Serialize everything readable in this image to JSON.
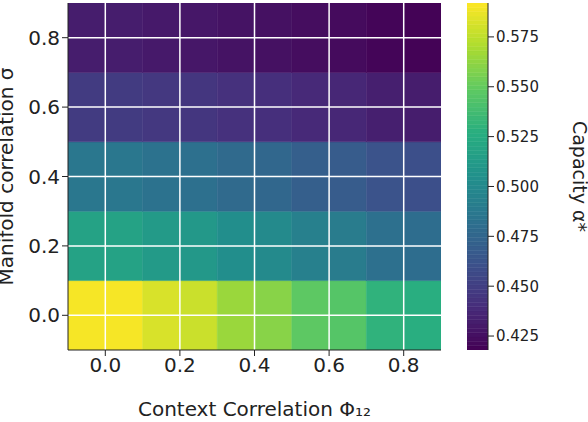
{
  "chart_data": {
    "type": "heatmap",
    "xlabel": "Context Correlation Φ₁₂",
    "ylabel": "Manifold correlation σ",
    "x": [
      -0.05,
      0.05,
      0.15,
      0.25,
      0.35,
      0.45,
      0.55,
      0.65,
      0.75,
      0.85
    ],
    "y": [
      0.0,
      0.2,
      0.4,
      0.6,
      0.8
    ],
    "values": [
      [
        0.59,
        0.59,
        0.582,
        0.578,
        0.565,
        0.56,
        0.548,
        0.545,
        0.53,
        0.527
      ],
      [
        0.518,
        0.518,
        0.512,
        0.51,
        0.503,
        0.5,
        0.493,
        0.49,
        0.482,
        0.48
      ],
      [
        0.487,
        0.487,
        0.483,
        0.482,
        0.478,
        0.476,
        0.47,
        0.468,
        0.462,
        0.46
      ],
      [
        0.448,
        0.448,
        0.446,
        0.445,
        0.442,
        0.441,
        0.438,
        0.437,
        0.433,
        0.432
      ],
      [
        0.432,
        0.432,
        0.43,
        0.429,
        0.427,
        0.426,
        0.424,
        0.423,
        0.42,
        0.419
      ]
    ],
    "xlim": [
      -0.1,
      0.9
    ],
    "ylim": [
      -0.1,
      0.9
    ],
    "xticks": [
      {
        "value": 0,
        "label": "0.0"
      },
      0.2,
      0.4,
      0.6,
      0.8
    ],
    "yticks": [
      {
        "value": 0,
        "label": "0.0"
      },
      0.2,
      0.4,
      0.6,
      0.8
    ],
    "grid": true,
    "colorbar_label": "Capacity α*",
    "colorbar_lim": [
      0.418,
      0.592
    ],
    "colorbar_ticks": [
      0.425,
      {
        "value": 0.45,
        "label": "0.450"
      },
      0.475,
      {
        "value": 0.5,
        "label": "0.500"
      },
      0.525,
      {
        "value": 0.55,
        "label": "0.550"
      },
      0.575
    ]
  }
}
